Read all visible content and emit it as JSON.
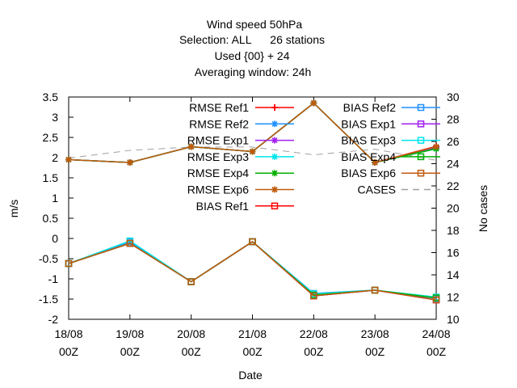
{
  "chart_data": {
    "type": "line",
    "title_lines": [
      "Wind speed 50hPa",
      "Selection: ALL      26 stations",
      "Used {00} + 24",
      "Averaging window: 24h"
    ],
    "xlabel": "Date",
    "ylabel": "m/s",
    "y2label": "No cases",
    "x": [
      "18/08 00Z",
      "19/08 00Z",
      "20/08 00Z",
      "21/08 00Z",
      "22/08 00Z",
      "23/08 00Z",
      "24/08 00Z"
    ],
    "x_tick_labels": [
      [
        "18/08",
        "00Z"
      ],
      [
        "19/08",
        "00Z"
      ],
      [
        "20/08",
        "00Z"
      ],
      [
        "21/08",
        "00Z"
      ],
      [
        "22/08",
        "00Z"
      ],
      [
        "23/08",
        "00Z"
      ],
      [
        "24/08",
        "00Z"
      ]
    ],
    "ylim": [
      -2,
      3.5
    ],
    "y_ticks": [
      "-2",
      "-1.5",
      "-1",
      "-0.5",
      "0",
      "0.5",
      "1",
      "1.5",
      "2",
      "2.5",
      "3",
      "3.5"
    ],
    "y2lim": [
      10,
      30
    ],
    "y2_ticks": [
      "10",
      "12",
      "14",
      "16",
      "18",
      "20",
      "22",
      "24",
      "26",
      "28",
      "30"
    ],
    "grid": false,
    "legend_position": "inside-top",
    "series": [
      {
        "name": "RMSE Ref1",
        "axis": "y",
        "color": "#ff0000",
        "marker": "plus",
        "dash": false,
        "values": [
          1.95,
          1.88,
          2.27,
          2.15,
          3.35,
          1.88,
          2.28
        ]
      },
      {
        "name": "RMSE Ref2",
        "axis": "y",
        "color": "#1e90ff",
        "marker": "star",
        "dash": false,
        "values": [
          1.95,
          1.88,
          2.27,
          2.15,
          3.35,
          1.88,
          2.25
        ]
      },
      {
        "name": "RMSE Exp1",
        "axis": "y",
        "color": "#a020f0",
        "marker": "star",
        "dash": false,
        "values": [
          1.95,
          1.88,
          2.27,
          2.15,
          3.35,
          1.88,
          2.25
        ]
      },
      {
        "name": "RMSE Exp3",
        "axis": "y",
        "color": "#00e5ee",
        "marker": "star",
        "dash": false,
        "values": [
          1.95,
          1.88,
          2.27,
          2.15,
          3.35,
          1.88,
          2.22
        ]
      },
      {
        "name": "RMSE Exp4",
        "axis": "y",
        "color": "#00b000",
        "marker": "star",
        "dash": false,
        "values": [
          1.95,
          1.88,
          2.27,
          2.15,
          3.35,
          1.88,
          2.22
        ]
      },
      {
        "name": "RMSE Exp6",
        "axis": "y",
        "color": "#c05a0c",
        "marker": "star",
        "dash": false,
        "values": [
          1.95,
          1.88,
          2.27,
          2.15,
          3.35,
          1.88,
          2.27
        ]
      },
      {
        "name": "BIAS Ref1",
        "axis": "y",
        "color": "#ff0000",
        "marker": "square",
        "dash": false,
        "values": [
          -0.62,
          -0.12,
          -1.07,
          -0.08,
          -1.42,
          -1.28,
          -1.52
        ]
      },
      {
        "name": "BIAS Ref2",
        "axis": "y",
        "color": "#1e90ff",
        "marker": "square",
        "dash": false,
        "values": [
          -0.62,
          -0.08,
          -1.07,
          -0.08,
          -1.36,
          -1.28,
          -1.48
        ]
      },
      {
        "name": "BIAS Exp1",
        "axis": "y",
        "color": "#a020f0",
        "marker": "square",
        "dash": false,
        "values": [
          -0.62,
          -0.12,
          -1.07,
          -0.08,
          -1.42,
          -1.28,
          -1.52
        ]
      },
      {
        "name": "BIAS Exp3",
        "axis": "y",
        "color": "#00e5ee",
        "marker": "square",
        "dash": false,
        "values": [
          -0.62,
          -0.06,
          -1.07,
          -0.08,
          -1.37,
          -1.28,
          -1.45
        ]
      },
      {
        "name": "BIAS Exp4",
        "axis": "y",
        "color": "#00b000",
        "marker": "square",
        "dash": false,
        "values": [
          -0.62,
          -0.12,
          -1.07,
          -0.08,
          -1.4,
          -1.28,
          -1.47
        ]
      },
      {
        "name": "BIAS Exp6",
        "axis": "y",
        "color": "#c05a0c",
        "marker": "square",
        "dash": false,
        "values": [
          -0.62,
          -0.12,
          -1.07,
          -0.08,
          -1.42,
          -1.28,
          -1.52
        ]
      },
      {
        "name": "CASES",
        "axis": "y2",
        "color": "#a0a0a0",
        "marker": "none",
        "dash": true,
        "values": [
          24.5,
          25.2,
          25.5,
          25.5,
          24.8,
          25.3,
          24.3
        ]
      }
    ]
  }
}
